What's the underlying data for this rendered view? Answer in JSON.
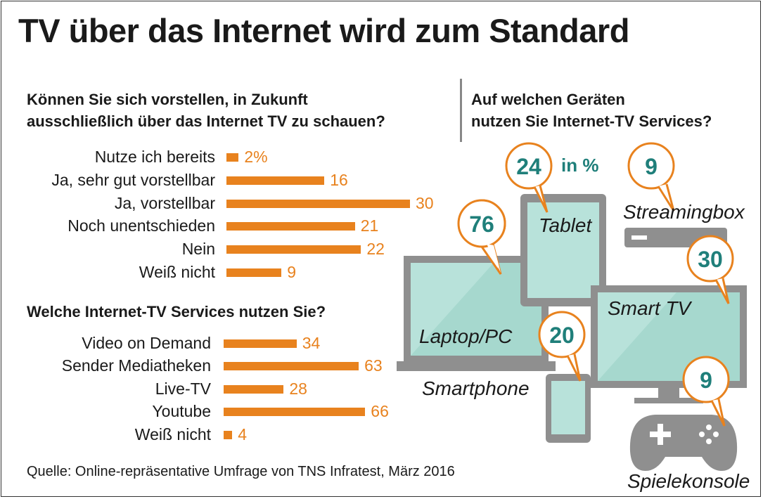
{
  "title": "TV über das Internet wird zum Standard",
  "question1": {
    "line1": "Können Sie sich vorstellen, in Zukunft",
    "line2": "ausschließlich über das Internet TV zu schauen?"
  },
  "question2": "Welche Internet-TV Services nutzen Sie?",
  "question3": {
    "line1": "Auf welchen Geräten",
    "line2": "nutzen Sie Internet-TV Services?"
  },
  "unit_label": "in %",
  "source": "Quelle: Online-repräsentative Umfrage von TNS Infratest, März 2016",
  "colors": {
    "bar": "#e8821e",
    "device_fill": "#a9dcd3",
    "device_frame": "#9a9a9a",
    "pin_number": "#1f7f7a"
  },
  "chart_data": [
    {
      "type": "bar",
      "orientation": "horizontal",
      "categories": [
        "Nutze ich bereits",
        "Ja, sehr gut vorstellbar",
        "Ja, vorstellbar",
        "Noch unentschieden",
        "Nein",
        "Weiß nicht"
      ],
      "values": [
        2,
        16,
        30,
        21,
        22,
        9
      ],
      "value_labels": [
        "2%",
        "16",
        "30",
        "21",
        "22",
        "9"
      ]
    },
    {
      "type": "bar",
      "orientation": "horizontal",
      "categories": [
        "Video on Demand",
        "Sender Mediatheken",
        "Live-TV",
        "Youtube",
        "Weiß nicht"
      ],
      "values": [
        34,
        63,
        28,
        66,
        4
      ],
      "value_labels": [
        "34",
        "63",
        "28",
        "66",
        "4"
      ]
    },
    {
      "type": "other",
      "categories": [
        "Laptop/PC",
        "Tablet",
        "Streamingbox",
        "Smart TV",
        "Smartphone",
        "Spielekonsole"
      ],
      "values": [
        76,
        24,
        9,
        30,
        20,
        9
      ]
    }
  ]
}
